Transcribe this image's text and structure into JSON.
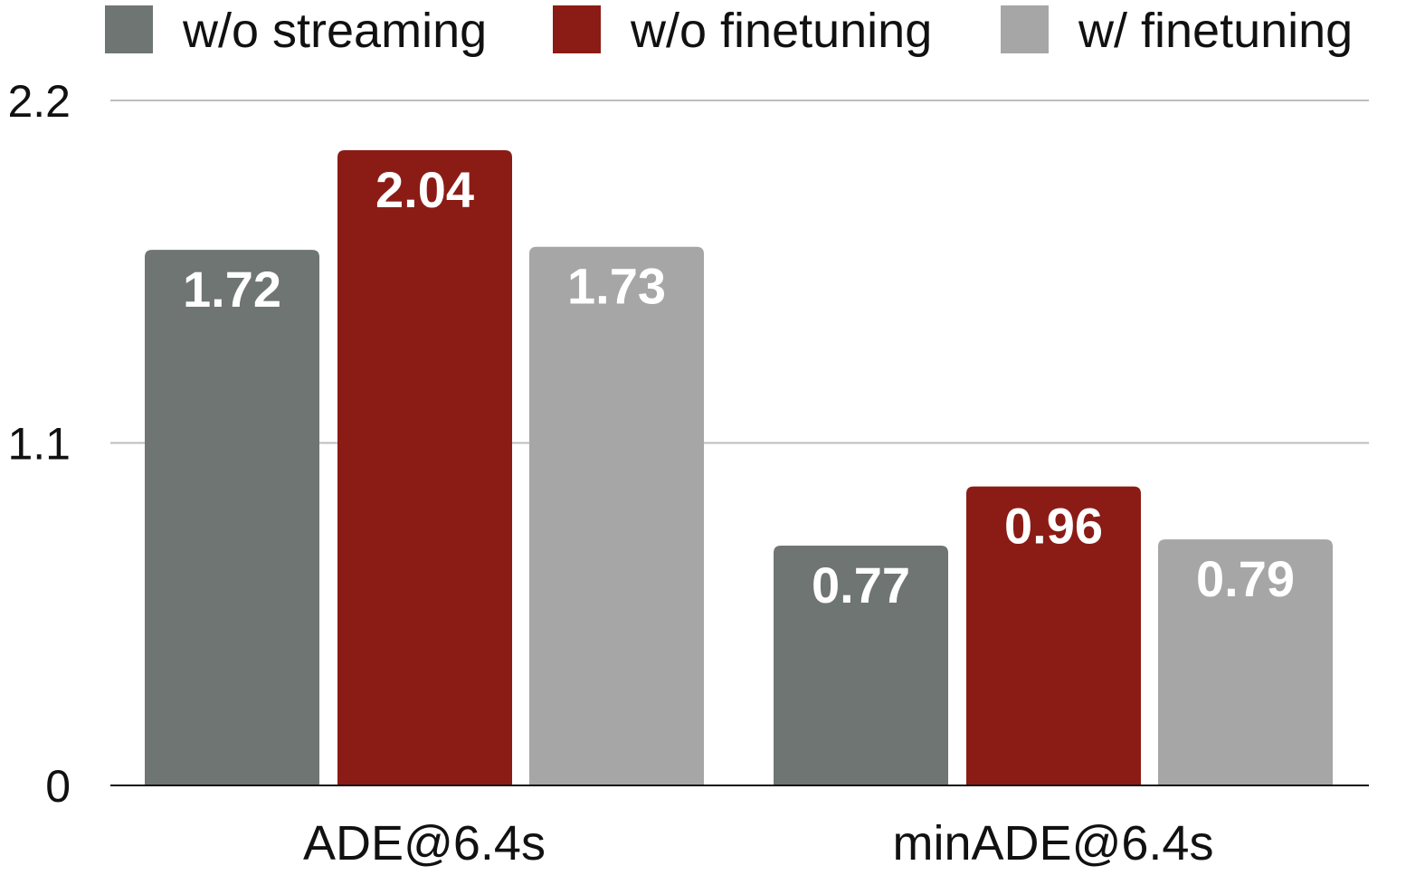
{
  "chart_data": {
    "type": "bar",
    "categories": [
      "ADE@6.4s",
      "minADE@6.4s"
    ],
    "series": [
      {
        "name": "w/o streaming",
        "color": "#6f7572",
        "values": [
          1.72,
          0.77
        ]
      },
      {
        "name": "w/o finetuning",
        "color": "#8b1c15",
        "values": [
          2.04,
          0.96
        ]
      },
      {
        "name": "w/ finetuning",
        "color": "#a6a6a6",
        "values": [
          1.73,
          0.79
        ]
      }
    ],
    "y_ticks": [
      "0",
      "1.1",
      "2.2"
    ],
    "ylim": [
      0,
      2.2
    ],
    "grid": true,
    "legend_position": "top",
    "data_labels": true
  }
}
